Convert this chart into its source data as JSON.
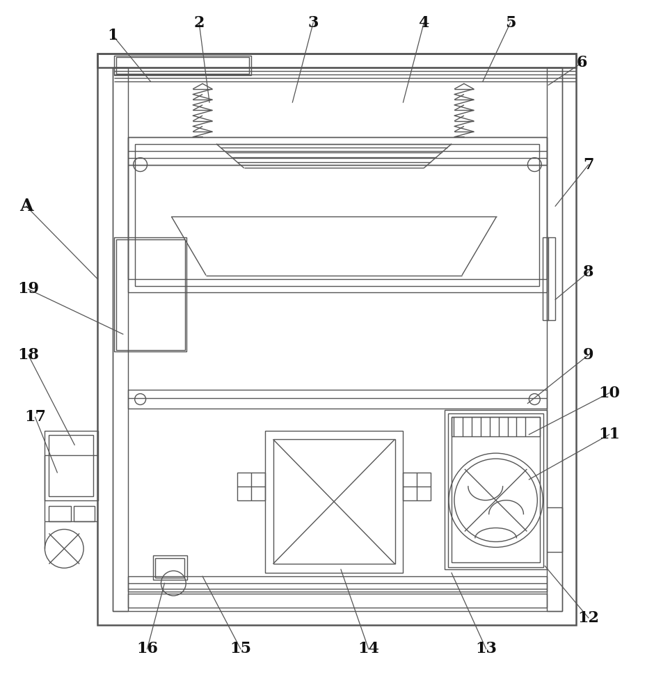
{
  "bg": "#ffffff",
  "lc": "#555555",
  "lw": 1.0,
  "fig_w": 9.63,
  "fig_h": 10.0,
  "leaders": [
    [
      160,
      48,
      215,
      115,
      "1"
    ],
    [
      285,
      30,
      300,
      145,
      "2"
    ],
    [
      450,
      30,
      420,
      145,
      "3"
    ],
    [
      610,
      30,
      580,
      145,
      "4"
    ],
    [
      735,
      30,
      695,
      115,
      "5"
    ],
    [
      838,
      88,
      790,
      120,
      "6"
    ],
    [
      848,
      235,
      800,
      295,
      "7"
    ],
    [
      848,
      390,
      800,
      430,
      "8"
    ],
    [
      848,
      510,
      760,
      580,
      "9"
    ],
    [
      878,
      565,
      762,
      625,
      "10"
    ],
    [
      878,
      625,
      762,
      690,
      "11"
    ],
    [
      848,
      890,
      785,
      815,
      "12"
    ],
    [
      700,
      935,
      650,
      825,
      "13"
    ],
    [
      530,
      935,
      490,
      820,
      "14"
    ],
    [
      345,
      935,
      290,
      830,
      "15"
    ],
    [
      210,
      935,
      235,
      840,
      "16"
    ],
    [
      48,
      600,
      80,
      680,
      "17"
    ],
    [
      38,
      510,
      105,
      640,
      "18"
    ],
    [
      38,
      415,
      175,
      480,
      "19"
    ],
    [
      35,
      295,
      138,
      400,
      "A"
    ]
  ]
}
